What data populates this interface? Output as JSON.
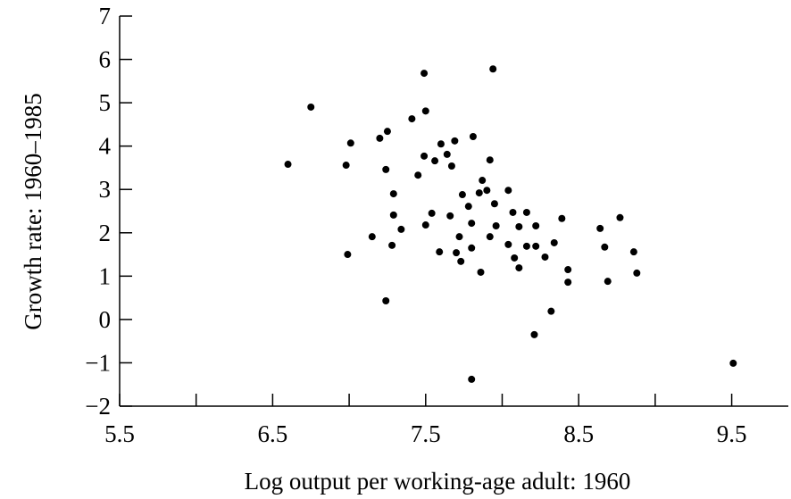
{
  "chart_data": {
    "type": "scatter",
    "xlabel": "Log output per working-age adult: 1960",
    "ylabel": "Growth rate: 1960–1985",
    "xlim": [
      5.5,
      9.87
    ],
    "ylim": [
      -2,
      7
    ],
    "xticks": [
      5.5,
      6.5,
      7.5,
      8.5,
      9.5
    ],
    "xminorticks": [
      6,
      7,
      8,
      9
    ],
    "yticks": [
      {
        "value": -2,
        "label": "−2"
      },
      {
        "value": -1,
        "label": "−1"
      },
      0,
      1,
      2,
      3,
      4,
      5,
      6,
      7
    ],
    "color": "#000000",
    "x": [
      6.6,
      6.75,
      6.98,
      7.01,
      6.99,
      7.15,
      7.2,
      7.25,
      7.24,
      7.29,
      7.29,
      7.28,
      7.34,
      7.24,
      7.41,
      7.45,
      7.49,
      7.5,
      7.49,
      7.5,
      7.54,
      7.56,
      7.6,
      7.59,
      7.64,
      7.67,
      7.69,
      7.66,
      7.7,
      7.72,
      7.73,
      7.74,
      7.78,
      7.8,
      7.8,
      7.81,
      7.85,
      7.87,
      7.86,
      7.9,
      7.92,
      7.92,
      7.94,
      7.95,
      7.96,
      7.8,
      8.04,
      8.04,
      8.07,
      8.08,
      8.11,
      8.11,
      8.16,
      8.16,
      8.22,
      8.22,
      8.21,
      8.28,
      8.34,
      8.32,
      8.39,
      8.43,
      8.43,
      8.64,
      8.67,
      8.69,
      8.77,
      8.86,
      8.88,
      9.51
    ],
    "values": [
      3.58,
      4.9,
      3.56,
      4.07,
      1.5,
      1.91,
      4.18,
      4.34,
      3.46,
      2.9,
      2.41,
      1.71,
      2.08,
      0.43,
      4.63,
      3.33,
      5.68,
      4.81,
      3.77,
      2.18,
      2.45,
      3.66,
      4.05,
      1.56,
      3.81,
      3.54,
      4.12,
      2.39,
      1.54,
      1.91,
      1.34,
      2.88,
      2.61,
      2.22,
      1.65,
      4.22,
      2.92,
      3.21,
      1.09,
      2.98,
      3.68,
      1.91,
      5.78,
      2.67,
      2.16,
      -1.38,
      2.98,
      1.73,
      2.47,
      1.42,
      2.14,
      1.19,
      2.47,
      1.69,
      1.69,
      2.16,
      -0.35,
      1.44,
      1.77,
      0.19,
      2.33,
      1.15,
      0.86,
      2.1,
      1.67,
      0.88,
      2.35,
      1.56,
      1.07,
      -1.01
    ]
  }
}
